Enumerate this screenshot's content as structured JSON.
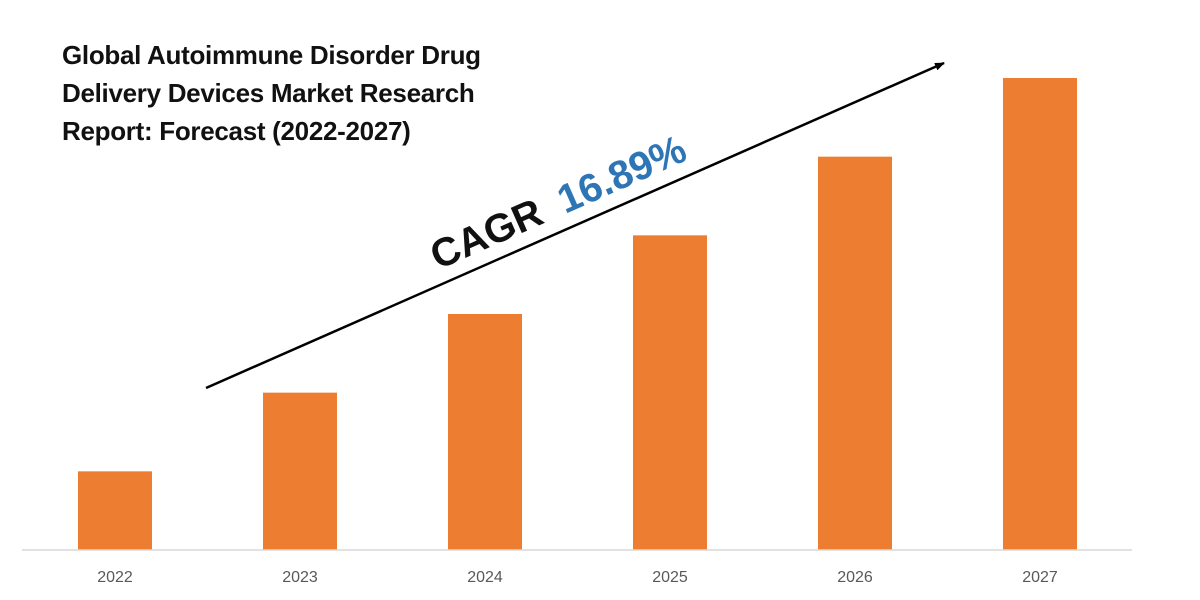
{
  "chart_data": {
    "type": "bar",
    "title_lines": [
      "Global Autoimmune Disorder Drug",
      "Delivery Devices Market Research",
      "Report: Forecast (2022-2027)"
    ],
    "categories": [
      "2022",
      "2023",
      "2024",
      "2025",
      "2026",
      "2027"
    ],
    "values": [
      1.0,
      2.0,
      3.0,
      4.0,
      5.0,
      6.0
    ],
    "ylim": [
      0,
      6.0
    ],
    "bar_color": "#ED7D31",
    "axis_color": "#D9D9D9",
    "annotation": {
      "prefix": "CAGR",
      "value": "16.89%",
      "prefix_color": "#111111",
      "value_color": "#2E75B6"
    },
    "xlabel": "",
    "ylabel": "",
    "grid": false,
    "legend": "none"
  }
}
